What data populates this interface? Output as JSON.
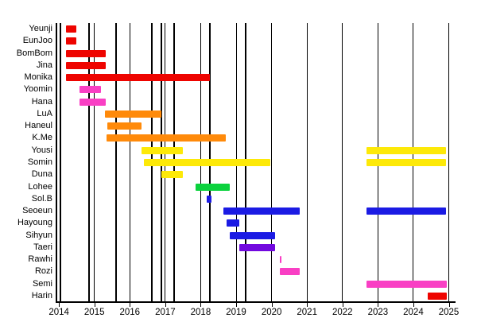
{
  "chart_data": {
    "type": "timeline",
    "description_of_visual": "Member timeline Gantt chart: colored horizontal bars per member over years, black vertical lines marking release events, yearly gridlines",
    "x_axis": {
      "start": 2013.93,
      "end": 2025.19,
      "tick_years": [
        2014,
        2015,
        2016,
        2017,
        2018,
        2019,
        2020,
        2021,
        2022,
        2023,
        2024,
        2025
      ],
      "labels": [
        "2014",
        "2015",
        "2016",
        "2017",
        "2018",
        "2019",
        "2020",
        "2021",
        "2022",
        "2023",
        "2024",
        "2025"
      ],
      "grid": "vertical lines at each year"
    },
    "colors": {
      "red": "#ee0400",
      "magenta": "#f93fc4",
      "orange": "#ff8a0a",
      "yellow": "#fde908",
      "green": "#0bd23d",
      "blue": "#1b1be4",
      "purple": "#7209df",
      "axis": "#000000"
    },
    "event_lines_years": [
      2014.04,
      2014.86,
      2015.61,
      2016.63,
      2016.88,
      2017.25,
      2018.26,
      2019.27
    ],
    "rows": [
      {
        "label": "Yeunji",
        "color": "red",
        "stints": [
          [
            2014.2,
            2014.5
          ]
        ]
      },
      {
        "label": "EunJoo",
        "color": "red",
        "stints": [
          [
            2014.2,
            2014.5
          ]
        ]
      },
      {
        "label": "BomBom",
        "color": "red",
        "stints": [
          [
            2014.2,
            2015.33
          ]
        ]
      },
      {
        "label": "Jina",
        "color": "red",
        "stints": [
          [
            2014.2,
            2015.31
          ]
        ]
      },
      {
        "label": "Monika",
        "color": "red",
        "stints": [
          [
            2014.2,
            2018.25
          ]
        ]
      },
      {
        "label": "Yoomin",
        "color": "magenta",
        "stints": [
          [
            2014.57,
            2015.19
          ]
        ]
      },
      {
        "label": "Hana",
        "color": "magenta",
        "stints": [
          [
            2014.57,
            2015.32
          ]
        ]
      },
      {
        "label": "LuA",
        "color": "orange",
        "stints": [
          [
            2015.29,
            2016.9
          ]
        ]
      },
      {
        "label": "Haneul",
        "color": "orange",
        "stints": [
          [
            2015.36,
            2016.34
          ]
        ]
      },
      {
        "label": "K.Me",
        "color": "orange",
        "stints": [
          [
            2015.35,
            2018.71
          ]
        ]
      },
      {
        "label": "Yousi",
        "color": "yellow",
        "stints": [
          [
            2016.34,
            2017.5
          ],
          [
            2022.68,
            2024.93
          ]
        ]
      },
      {
        "label": "Somin",
        "color": "yellow",
        "stints": [
          [
            2016.39,
            2019.97
          ],
          [
            2022.68,
            2024.93
          ]
        ]
      },
      {
        "label": "Duna",
        "color": "yellow",
        "stints": [
          [
            2016.89,
            2017.5
          ]
        ]
      },
      {
        "label": "Lohee",
        "color": "green",
        "stints": [
          [
            2017.86,
            2018.83
          ]
        ]
      },
      {
        "label": "Sol.B",
        "color": "blue",
        "stints": [
          [
            2018.16,
            2018.31
          ]
        ]
      },
      {
        "label": "Seoeun",
        "color": "blue",
        "stints": [
          [
            2018.63,
            2020.8
          ],
          [
            2022.68,
            2024.93
          ]
        ]
      },
      {
        "label": "Hayoung",
        "color": "blue",
        "stints": [
          [
            2018.73,
            2019.1
          ]
        ]
      },
      {
        "label": "Sihyun",
        "color": "blue",
        "stints": [
          [
            2018.83,
            2020.1
          ]
        ]
      },
      {
        "label": "Taeri",
        "color": "purple",
        "stints": [
          [
            2019.1,
            2020.1
          ]
        ]
      },
      {
        "label": "Rawhi",
        "color": "magenta",
        "stints": [
          [
            2020.23,
            2020.28
          ]
        ]
      },
      {
        "label": "Rozi",
        "color": "magenta",
        "stints": [
          [
            2020.23,
            2020.79
          ]
        ]
      },
      {
        "label": "Semi",
        "color": "magenta",
        "stints": [
          [
            2022.68,
            2024.95
          ]
        ]
      },
      {
        "label": "Harin",
        "color": "red",
        "stints": [
          [
            2024.4,
            2024.95
          ]
        ]
      }
    ]
  }
}
